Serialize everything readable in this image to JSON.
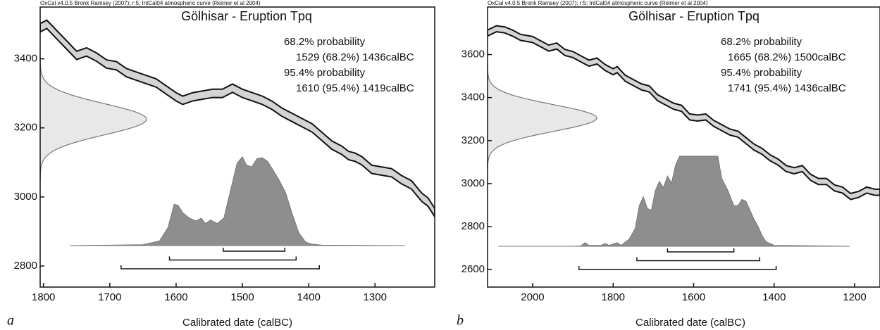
{
  "chart_data": [
    {
      "type": "calibration",
      "header": "OxCal v4.0.5 Bronk Ramsey (2007); r:5; IntCal04 atmospheric curve (Reimer et al 2004)",
      "title": "Gölhisar - Eruption Tpq",
      "xlabel": "Calibrated date (calBC)",
      "panel": "a",
      "xlim": [
        1805,
        1210
      ],
      "xticks": [
        1800,
        1700,
        1600,
        1500,
        1400,
        1300
      ],
      "ylim": [
        2739,
        3550
      ],
      "yticks": [
        2800,
        3000,
        3200,
        3400
      ],
      "curve": {
        "x": [
          1805,
          1795,
          1780,
          1765,
          1750,
          1735,
          1720,
          1705,
          1690,
          1675,
          1660,
          1645,
          1630,
          1615,
          1600,
          1590,
          1575,
          1560,
          1545,
          1530,
          1515,
          1500,
          1485,
          1470,
          1455,
          1440,
          1425,
          1410,
          1395,
          1380,
          1365,
          1350,
          1340,
          1330,
          1320,
          1305,
          1290,
          1275,
          1260,
          1245,
          1230,
          1220,
          1210
        ],
        "values": [
          3490,
          3500,
          3470,
          3440,
          3410,
          3420,
          3405,
          3385,
          3380,
          3360,
          3350,
          3340,
          3330,
          3310,
          3290,
          3280,
          3290,
          3295,
          3300,
          3300,
          3315,
          3300,
          3290,
          3280,
          3265,
          3245,
          3230,
          3215,
          3200,
          3175,
          3150,
          3135,
          3120,
          3115,
          3105,
          3080,
          3075,
          3070,
          3050,
          3035,
          3000,
          2985,
          2955
        ],
        "errors": [
          12,
          12,
          12,
          12,
          12,
          12,
          12,
          12,
          12,
          12,
          12,
          12,
          12,
          12,
          12,
          12,
          12,
          12,
          12,
          12,
          12,
          12,
          12,
          12,
          12,
          12,
          12,
          12,
          12,
          12,
          12,
          12,
          12,
          12,
          12,
          12,
          12,
          12,
          12,
          12,
          12,
          12,
          12
        ]
      },
      "c14": {
        "mean": 3225,
        "sd": 45
      },
      "posterior": {
        "x": [
          1760,
          1700,
          1650,
          1625,
          1612,
          1603,
          1597,
          1590,
          1580,
          1570,
          1562,
          1556,
          1548,
          1538,
          1528,
          1518,
          1508,
          1500,
          1494,
          1486,
          1478,
          1470,
          1462,
          1455,
          1445,
          1435,
          1425,
          1415,
          1405,
          1395,
          1380,
          1255
        ],
        "density": [
          0,
          0.005,
          0.01,
          0.05,
          0.2,
          0.45,
          0.44,
          0.36,
          0.3,
          0.27,
          0.3,
          0.24,
          0.28,
          0.24,
          0.3,
          0.6,
          0.9,
          0.97,
          0.88,
          0.86,
          0.95,
          0.96,
          0.92,
          0.84,
          0.72,
          0.58,
          0.35,
          0.14,
          0.04,
          0.015,
          0.005,
          0
        ]
      },
      "ranges": [
        {
          "heading": "68.2% probability",
          "label": "1529 (68.2%) 1436calBC",
          "from": 1529,
          "to": 1436
        },
        {
          "heading": "95.4% probability",
          "label": "1610 (95.4%) 1419calBC",
          "from": 1610,
          "to": 1419
        },
        {
          "from": 1683,
          "to": 1384
        }
      ]
    },
    {
      "type": "calibration",
      "header": "OxCal v4.0.5 Bronk Ramsey (2007); r:5; IntCal04 atmospheric curve (Reimer et al 2004)",
      "title": "Gölhisar - Eruption Tpq",
      "xlabel": "Calibrated date (calBC)",
      "panel": "b",
      "xlim": [
        2112,
        1137
      ],
      "xticks": [
        2000,
        1800,
        1600,
        1400,
        1200
      ],
      "ylim": [
        2519,
        3821
      ],
      "yticks": [
        2600,
        2800,
        3000,
        3200,
        3400,
        3600
      ],
      "curve": {
        "x": [
          2112,
          2090,
          2070,
          2050,
          2030,
          2000,
          1980,
          1960,
          1940,
          1920,
          1900,
          1880,
          1860,
          1840,
          1820,
          1800,
          1790,
          1770,
          1750,
          1730,
          1710,
          1690,
          1670,
          1650,
          1630,
          1610,
          1590,
          1570,
          1550,
          1530,
          1510,
          1490,
          1470,
          1450,
          1430,
          1410,
          1390,
          1370,
          1350,
          1330,
          1310,
          1290,
          1270,
          1250,
          1230,
          1210,
          1190,
          1170,
          1150,
          1137
        ],
        "values": [
          3700,
          3720,
          3715,
          3700,
          3680,
          3670,
          3650,
          3630,
          3640,
          3610,
          3600,
          3580,
          3560,
          3570,
          3540,
          3520,
          3530,
          3490,
          3470,
          3450,
          3440,
          3400,
          3380,
          3360,
          3350,
          3310,
          3305,
          3310,
          3280,
          3260,
          3240,
          3230,
          3200,
          3170,
          3150,
          3120,
          3100,
          3070,
          3060,
          3070,
          3030,
          3010,
          3010,
          2980,
          2970,
          2940,
          2950,
          2970,
          2960,
          2960
        ],
        "errors": [
          14,
          14,
          14,
          14,
          14,
          14,
          14,
          14,
          14,
          14,
          14,
          14,
          14,
          14,
          14,
          14,
          14,
          14,
          14,
          14,
          14,
          14,
          14,
          14,
          14,
          14,
          14,
          14,
          14,
          14,
          14,
          14,
          14,
          14,
          14,
          14,
          14,
          14,
          14,
          14,
          14,
          14,
          14,
          14,
          14,
          14,
          14,
          14,
          14,
          14
        ]
      },
      "c14": {
        "mean": 3305,
        "sd": 62
      },
      "posterior": {
        "x": [
          2085,
          1900,
          1880,
          1870,
          1860,
          1830,
          1820,
          1810,
          1790,
          1780,
          1760,
          1745,
          1735,
          1725,
          1715,
          1705,
          1695,
          1685,
          1675,
          1665,
          1655,
          1645,
          1635,
          1600,
          1560,
          1540,
          1530,
          1515,
          1500,
          1490,
          1480,
          1470,
          1460,
          1450,
          1440,
          1430,
          1420,
          1400,
          1212
        ],
        "density": [
          0,
          0,
          0.005,
          0.04,
          0.01,
          0.01,
          0.03,
          0.01,
          0.04,
          0.01,
          0.08,
          0.2,
          0.45,
          0.55,
          0.42,
          0.4,
          0.62,
          0.72,
          0.65,
          0.78,
          0.7,
          0.9,
          1.0,
          1.0,
          1.0,
          1.0,
          0.75,
          0.62,
          0.45,
          0.45,
          0.52,
          0.5,
          0.4,
          0.3,
          0.22,
          0.12,
          0.05,
          0.01,
          0
        ]
      },
      "ranges": [
        {
          "heading": "68.2% probability",
          "label": "1665 (68.2%) 1500calBC",
          "from": 1665,
          "to": 1500
        },
        {
          "heading": "95.4% probability",
          "label": "1741 (95.4%) 1436calBC",
          "from": 1741,
          "to": 1436
        },
        {
          "from": 1885,
          "to": 1395
        }
      ]
    }
  ]
}
